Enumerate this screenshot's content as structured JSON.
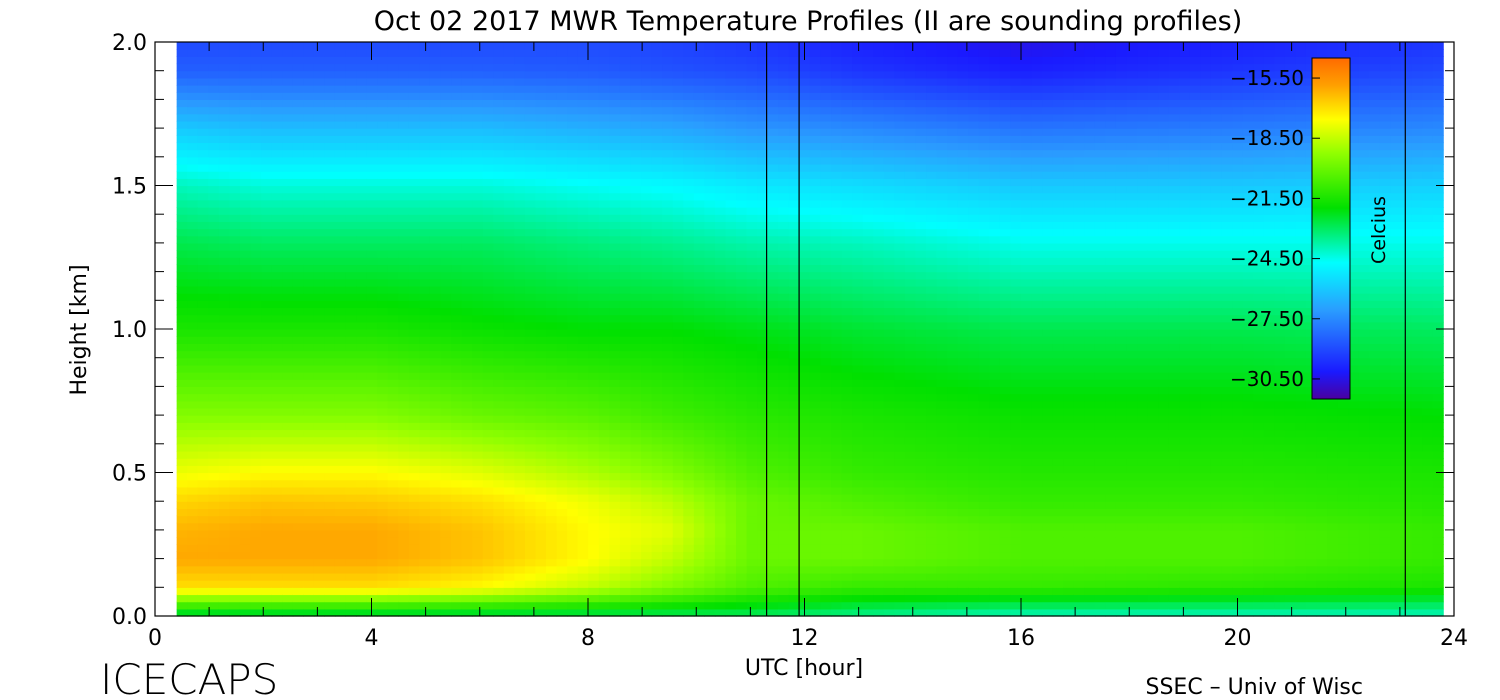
{
  "chart_data": {
    "type": "heatmap",
    "title": "Oct 02 2017 MWR Temperature Profiles (II are sounding profiles)",
    "xlabel": "UTC [hour]",
    "ylabel": "Height [km]",
    "xlim": [
      0,
      24
    ],
    "ylim": [
      0,
      2.0
    ],
    "x_ticks": [
      0,
      4,
      8,
      12,
      16,
      20,
      24
    ],
    "x_tick_labels": [
      "0",
      "4",
      "8",
      "12",
      "16",
      "20",
      "24"
    ],
    "y_ticks": [
      0,
      0.5,
      1.0,
      1.5,
      2.0
    ],
    "y_tick_labels": [
      "0.0",
      "0.5",
      "1.0",
      "1.5",
      "2.0"
    ],
    "data_time_range_hours": [
      0.4,
      23.8
    ],
    "sounding_profile_times_hours": [
      11.3,
      11.9,
      23.1
    ],
    "colorbar": {
      "label": "Celcius",
      "range": [
        -31.5,
        -14.5
      ],
      "tick_values": [
        -15.5,
        -18.5,
        -21.5,
        -24.5,
        -27.5,
        -30.5
      ],
      "tick_labels": [
        "−15.50",
        "−18.50",
        "−21.50",
        "−24.50",
        "−27.50",
        "−30.50"
      ]
    },
    "heights_km": [
      0.0,
      0.1,
      0.2,
      0.3,
      0.4,
      0.5,
      0.7,
      1.0,
      1.3,
      1.5,
      1.7,
      1.9,
      2.0
    ],
    "series": [
      {
        "time": 0.5,
        "temps": [
          -23,
          -17,
          -16,
          -16.2,
          -16.8,
          -17.8,
          -19.5,
          -21.5,
          -22.8,
          -24.0,
          -26.0,
          -28.5,
          -29.0
        ]
      },
      {
        "time": 2.0,
        "temps": [
          -23,
          -17,
          -16,
          -16.0,
          -16.5,
          -17.5,
          -19.5,
          -21.5,
          -23.0,
          -24.3,
          -26.3,
          -28.5,
          -29.0
        ]
      },
      {
        "time": 4.0,
        "temps": [
          -23,
          -17,
          -16,
          -16.0,
          -16.6,
          -17.5,
          -19.5,
          -21.5,
          -23.0,
          -24.3,
          -26.3,
          -28.5,
          -29.0
        ]
      },
      {
        "time": 6.0,
        "temps": [
          -23,
          -17.5,
          -16.5,
          -16.5,
          -17.0,
          -18.0,
          -20.0,
          -21.8,
          -23.0,
          -24.3,
          -26.3,
          -28.5,
          -29.0
        ]
      },
      {
        "time": 8.0,
        "temps": [
          -23,
          -18.5,
          -17.5,
          -17.5,
          -17.8,
          -18.8,
          -20.3,
          -22.0,
          -23.3,
          -24.6,
          -26.6,
          -28.6,
          -29.0
        ]
      },
      {
        "time": 9.5,
        "temps": [
          -23,
          -19.5,
          -18.5,
          -18.0,
          -18.6,
          -19.5,
          -20.8,
          -22.0,
          -23.5,
          -24.8,
          -26.8,
          -28.8,
          -29.2
        ]
      },
      {
        "time": 11.0,
        "temps": [
          -23,
          -20.5,
          -20.0,
          -20.0,
          -20.0,
          -20.5,
          -21.2,
          -22.2,
          -23.8,
          -25.2,
          -27.2,
          -29.0,
          -29.5
        ]
      },
      {
        "time": 13.0,
        "temps": [
          -23.5,
          -21.0,
          -20.0,
          -20.0,
          -20.5,
          -21.0,
          -21.5,
          -22.5,
          -24.0,
          -25.5,
          -27.5,
          -29.5,
          -30.0
        ]
      },
      {
        "time": 16.0,
        "temps": [
          -24,
          -21.0,
          -20.5,
          -20.5,
          -21.0,
          -21.3,
          -21.8,
          -22.8,
          -24.5,
          -26.0,
          -28.0,
          -30.0,
          -30.5
        ]
      },
      {
        "time": 20.0,
        "temps": [
          -24,
          -21.2,
          -20.5,
          -20.5,
          -21.0,
          -21.3,
          -21.8,
          -22.8,
          -24.5,
          -26.0,
          -27.8,
          -29.5,
          -30.0
        ]
      },
      {
        "time": 23.8,
        "temps": [
          -24,
          -21.5,
          -21.0,
          -21.0,
          -21.3,
          -21.5,
          -22.0,
          -23.0,
          -24.5,
          -25.8,
          -27.5,
          -29.0,
          -29.5
        ]
      }
    ],
    "grid": false,
    "legend": "colorbar, upper right inside plot"
  },
  "footer": {
    "left": "ICECAPS",
    "right": "SSEC – Univ of Wisc"
  }
}
